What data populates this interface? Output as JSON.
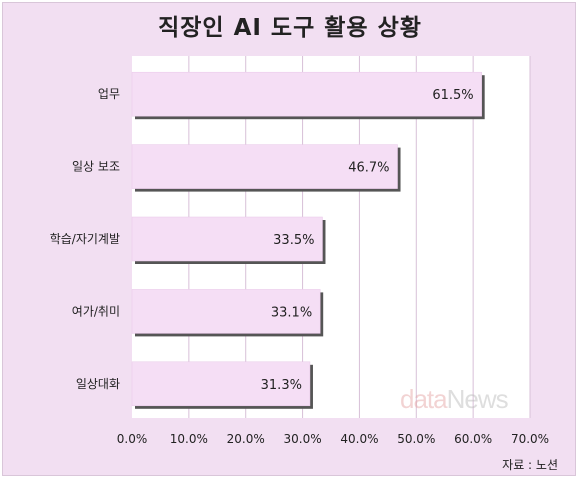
{
  "title": "직장인 AI 도구 활용 상황",
  "source": "자료 : 노션",
  "watermark": {
    "part1": "data",
    "part2": "News"
  },
  "colors": {
    "background": "#f2dff2",
    "plot_area": "#ffffff",
    "bar_fill": "#f5def5",
    "bar_shadow": "#555555",
    "gridline": "#d8c0d8",
    "text": "#222222"
  },
  "chart_data": {
    "type": "bar",
    "orientation": "horizontal",
    "title": "직장인 AI 도구 활용 상황",
    "categories": [
      "업무",
      "일상 보조",
      "학습/자기계발",
      "여가/취미",
      "일상대화"
    ],
    "values": [
      61.5,
      46.7,
      33.5,
      33.1,
      31.3
    ],
    "data_labels": [
      "61.5%",
      "46.7%",
      "33.5%",
      "33.1%",
      "31.3%"
    ],
    "xlim": [
      0,
      70
    ],
    "xticks": [
      0,
      10,
      20,
      30,
      40,
      50,
      60,
      70
    ],
    "xtick_labels": [
      "0.0%",
      "10.0%",
      "20.0%",
      "30.0%",
      "40.0%",
      "50.0%",
      "60.0%",
      "70.0%"
    ],
    "xlabel": "",
    "ylabel": "",
    "grid": true,
    "legend": false
  }
}
